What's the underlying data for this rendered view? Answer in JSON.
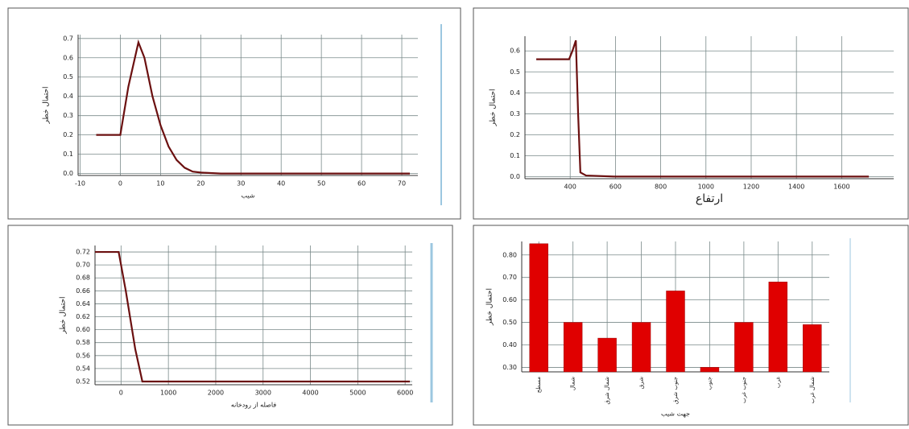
{
  "chart_data": [
    {
      "type": "line",
      "x_label": "شیب",
      "y_label": "احتمال خطر",
      "color": "#6b1010",
      "grid": true,
      "x": [
        -6,
        0,
        2,
        4.5,
        6,
        8,
        10,
        12,
        14,
        16,
        18,
        20,
        25,
        72
      ],
      "values": [
        0.2,
        0.2,
        0.45,
        0.68,
        0.6,
        0.4,
        0.25,
        0.14,
        0.07,
        0.03,
        0.01,
        0.005,
        0,
        0
      ],
      "xlim": [
        -10.5,
        74
      ],
      "xticks": [
        -10,
        0,
        10,
        20,
        30,
        40,
        50,
        60,
        70
      ],
      "ylim": [
        -0.01,
        0.72
      ],
      "yticks": [
        {
          "value": 0,
          "label": "0.0"
        },
        0.1,
        0.2,
        0.3,
        0.4,
        0.5,
        0.6,
        0.7
      ]
    },
    {
      "type": "line",
      "x_label": "ارتفاع",
      "y_label": "احتمال خطر",
      "color": "#6b1010",
      "grid": true,
      "x": [
        250,
        395,
        410,
        425,
        435,
        445,
        470,
        600,
        1720
      ],
      "values": [
        0.56,
        0.56,
        0.6,
        0.65,
        0.3,
        0.02,
        0.005,
        0,
        0
      ],
      "xlim": [
        200,
        1830
      ],
      "xticks": [
        400,
        600,
        800,
        1000,
        1200,
        1400,
        1600
      ],
      "ylim": [
        -0.01,
        0.67
      ],
      "yticks": [
        {
          "value": 0,
          "label": "0.0"
        },
        0.1,
        0.2,
        0.3,
        0.4,
        0.5,
        0.6
      ]
    },
    {
      "type": "line",
      "x_label": "فاصله از رودخانه",
      "y_label": "احتمال خطر",
      "color": "#6b1010",
      "grid": true,
      "x": [
        -550,
        -50,
        100,
        300,
        450,
        6100
      ],
      "values": [
        0.72,
        0.72,
        0.66,
        0.57,
        0.52,
        0.52
      ],
      "xlim": [
        -550,
        6150
      ],
      "xticks": [
        0,
        1000,
        2000,
        3000,
        4000,
        5000,
        6000
      ],
      "ylim": [
        0.515,
        0.73
      ],
      "yticks": [
        0.52,
        0.54,
        0.56,
        0.58,
        {
          "value": 0.6,
          "label": "0.60"
        },
        0.62,
        0.64,
        0.66,
        0.68,
        {
          "value": 0.7,
          "label": "0.70"
        },
        0.72
      ]
    },
    {
      "type": "bar",
      "x_label": "جهت شیب",
      "y_label": "احتمال خطر",
      "color": "#e00000",
      "grid": true,
      "categories": [
        "مسطح",
        "شمال",
        "شمال شرق",
        "شرق",
        "جنوب شرق",
        "جنوب",
        "جنوب غرب",
        "غرب",
        "شمال غرب"
      ],
      "values": [
        0.85,
        0.5,
        0.43,
        0.5,
        0.64,
        0.3,
        0.5,
        0.68,
        0.49
      ],
      "ylim": [
        0.28,
        0.86
      ],
      "yticks": [
        {
          "value": 0.3,
          "label": "0.30"
        },
        {
          "value": 0.4,
          "label": "0.40"
        },
        {
          "value": 0.5,
          "label": "0.50"
        },
        {
          "value": 0.6,
          "label": "0.60"
        },
        {
          "value": 0.7,
          "label": "0.70"
        },
        {
          "value": 0.8,
          "label": "0.80"
        }
      ]
    }
  ]
}
